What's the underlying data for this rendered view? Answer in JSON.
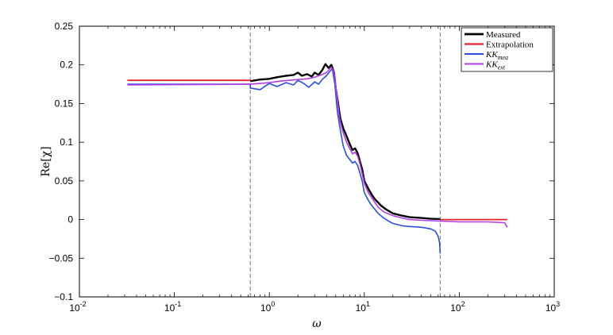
{
  "chart_data": {
    "type": "line",
    "xlabel": "ω",
    "ylabel": "Re[χ]",
    "xscale": "log",
    "xlim": [
      0.01,
      1000
    ],
    "ylim": [
      -0.1,
      0.25
    ],
    "x_ticks": [
      {
        "value": 0.01,
        "base": "10",
        "exp": "-2"
      },
      {
        "value": 0.1,
        "base": "10",
        "exp": "-1"
      },
      {
        "value": 1,
        "base": "10",
        "exp": "0"
      },
      {
        "value": 10,
        "base": "10",
        "exp": "1"
      },
      {
        "value": 100,
        "base": "10",
        "exp": "2"
      },
      {
        "value": 1000,
        "base": "10",
        "exp": "3"
      }
    ],
    "y_ticks": [
      {
        "value": -0.1,
        "label": "−0.1"
      },
      {
        "value": -0.05,
        "label": "−0.05"
      },
      {
        "value": 0,
        "label": "0"
      },
      {
        "value": 0.05,
        "label": "0.05"
      },
      {
        "value": 0.1,
        "label": "0.1"
      },
      {
        "value": 0.15,
        "label": "0.15"
      },
      {
        "value": 0.2,
        "label": "0.2"
      },
      {
        "value": 0.25,
        "label": "0.25"
      }
    ],
    "grid": false,
    "legend_position": "top-right",
    "vlines": [
      0.63,
      63
    ],
    "series": [
      {
        "name": "Measured",
        "legend": {
          "base": "Measured",
          "sub": ""
        },
        "color": "#000000",
        "width": 2.4,
        "points": [
          [
            0.63,
            0.179
          ],
          [
            0.8,
            0.181
          ],
          [
            1.0,
            0.182
          ],
          [
            1.2,
            0.184
          ],
          [
            1.5,
            0.186
          ],
          [
            1.8,
            0.187
          ],
          [
            2.0,
            0.19
          ],
          [
            2.2,
            0.186
          ],
          [
            2.5,
            0.188
          ],
          [
            2.8,
            0.185
          ],
          [
            3.0,
            0.19
          ],
          [
            3.3,
            0.187
          ],
          [
            3.6,
            0.193
          ],
          [
            3.9,
            0.201
          ],
          [
            4.2,
            0.196
          ],
          [
            4.5,
            0.2
          ],
          [
            4.8,
            0.19
          ],
          [
            5.0,
            0.17
          ],
          [
            5.3,
            0.15
          ],
          [
            5.6,
            0.13
          ],
          [
            6.0,
            0.118
          ],
          [
            6.5,
            0.108
          ],
          [
            7.0,
            0.098
          ],
          [
            7.5,
            0.09
          ],
          [
            8.0,
            0.092
          ],
          [
            8.5,
            0.086
          ],
          [
            9.0,
            0.075
          ],
          [
            9.5,
            0.065
          ],
          [
            10,
            0.05
          ],
          [
            11,
            0.04
          ],
          [
            12,
            0.032
          ],
          [
            13,
            0.026
          ],
          [
            15,
            0.018
          ],
          [
            17,
            0.013
          ],
          [
            20,
            0.008
          ],
          [
            25,
            0.005
          ],
          [
            30,
            0.003
          ],
          [
            40,
            0.002
          ],
          [
            50,
            0.001
          ],
          [
            63,
            0.0007
          ]
        ]
      },
      {
        "name": "Extrapolation",
        "legend": {
          "base": "Extrapolation",
          "sub": ""
        },
        "color": "#e8202a",
        "width": 1.8,
        "points": [
          [
            0.032,
            0.18
          ],
          [
            0.63,
            0.18
          ]
        ]
      },
      {
        "name": "Extrapolation right",
        "legend": {
          "base": "",
          "sub": ""
        },
        "color": "#e8202a",
        "width": 1.8,
        "points": [
          [
            63,
            0.0
          ],
          [
            320,
            0.0
          ]
        ]
      },
      {
        "name": "KK_mea",
        "legend": {
          "base": "KK",
          "sub": "mea"
        },
        "color": "#2a4fe0",
        "width": 1.6,
        "points": [
          [
            0.032,
            0.175
          ],
          [
            0.63,
            0.175
          ],
          [
            0.63,
            0.17
          ],
          [
            0.8,
            0.168
          ],
          [
            1.0,
            0.176
          ],
          [
            1.2,
            0.172
          ],
          [
            1.5,
            0.177
          ],
          [
            1.8,
            0.174
          ],
          [
            2.0,
            0.18
          ],
          [
            2.3,
            0.176
          ],
          [
            2.6,
            0.171
          ],
          [
            3.0,
            0.178
          ],
          [
            3.3,
            0.175
          ],
          [
            3.6,
            0.181
          ],
          [
            4.0,
            0.186
          ],
          [
            4.3,
            0.191
          ],
          [
            4.6,
            0.195
          ],
          [
            4.9,
            0.175
          ],
          [
            5.2,
            0.14
          ],
          [
            5.6,
            0.115
          ],
          [
            6.0,
            0.095
          ],
          [
            6.5,
            0.083
          ],
          [
            7.0,
            0.078
          ],
          [
            7.5,
            0.073
          ],
          [
            8.0,
            0.075
          ],
          [
            8.5,
            0.07
          ],
          [
            9.0,
            0.06
          ],
          [
            9.5,
            0.05
          ],
          [
            10,
            0.035
          ],
          [
            11,
            0.025
          ],
          [
            12,
            0.018
          ],
          [
            14,
            0.008
          ],
          [
            16,
            0.002
          ],
          [
            18,
            -0.002
          ],
          [
            20,
            -0.005
          ],
          [
            25,
            -0.008
          ],
          [
            30,
            -0.009
          ],
          [
            40,
            -0.01
          ],
          [
            50,
            -0.012
          ],
          [
            56,
            -0.015
          ],
          [
            60,
            -0.022
          ],
          [
            62,
            -0.03
          ],
          [
            63,
            -0.044
          ]
        ]
      },
      {
        "name": "KK_ext",
        "legend": {
          "base": "KK",
          "sub": "ext"
        },
        "color": "#b23be6",
        "width": 1.6,
        "points": [
          [
            0.032,
            0.174
          ],
          [
            0.63,
            0.175
          ],
          [
            0.8,
            0.176
          ],
          [
            1.0,
            0.177
          ],
          [
            1.3,
            0.179
          ],
          [
            1.6,
            0.18
          ],
          [
            2.0,
            0.181
          ],
          [
            2.5,
            0.182
          ],
          [
            3.0,
            0.184
          ],
          [
            3.5,
            0.187
          ],
          [
            4.0,
            0.19
          ],
          [
            4.5,
            0.197
          ],
          [
            4.8,
            0.19
          ],
          [
            5.1,
            0.165
          ],
          [
            5.5,
            0.13
          ],
          [
            6.0,
            0.112
          ],
          [
            6.5,
            0.1
          ],
          [
            7.0,
            0.092
          ],
          [
            7.5,
            0.085
          ],
          [
            8.0,
            0.087
          ],
          [
            8.5,
            0.082
          ],
          [
            9.0,
            0.072
          ],
          [
            10,
            0.047
          ],
          [
            11,
            0.035
          ],
          [
            12,
            0.028
          ],
          [
            14,
            0.016
          ],
          [
            16,
            0.01
          ],
          [
            20,
            0.005
          ],
          [
            25,
            0.002
          ],
          [
            30,
            0.0
          ],
          [
            40,
            -0.001
          ],
          [
            63,
            -0.002
          ],
          [
            100,
            -0.003
          ],
          [
            200,
            -0.003
          ],
          [
            300,
            -0.004
          ],
          [
            320,
            -0.01
          ]
        ]
      }
    ]
  }
}
